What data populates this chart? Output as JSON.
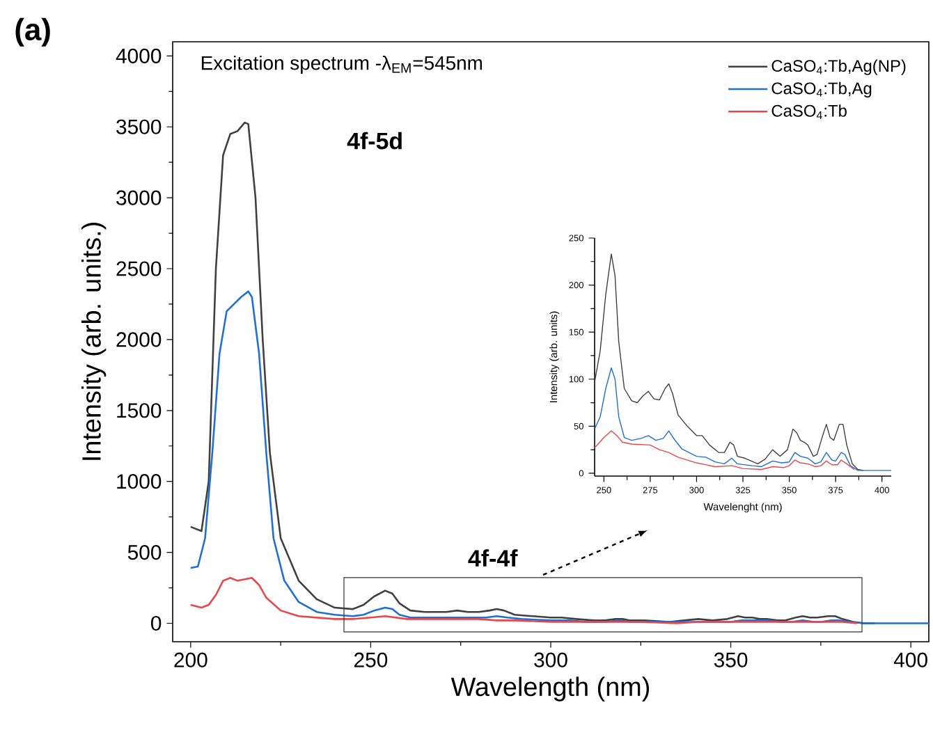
{
  "chart_data": [
    {
      "type": "line",
      "title": "Excitation spectrum -λ$_{EM}$=545nm",
      "xlabel": "Wavelength (nm)",
      "ylabel": "Intensity (arb. units.)",
      "annotations": [
        "(a)",
        "4f-5d",
        "4f-4f"
      ],
      "xlim": [
        195,
        405
      ],
      "ylim": [
        -130,
        4100
      ],
      "xticks": [
        200,
        250,
        300,
        350,
        400
      ],
      "yticks": [
        0,
        500,
        1000,
        1500,
        2000,
        2500,
        3000,
        3500,
        4000
      ],
      "legend": "top right",
      "line_style": "solid",
      "series": [
        {
          "name": "CaSO$_{4}$:Tb,Ag(NP)",
          "color": "#404040",
          "x": [
            200,
            203,
            205,
            207,
            209,
            211,
            213,
            215,
            216,
            218,
            220,
            222,
            225,
            230,
            235,
            240,
            245,
            248,
            251,
            254,
            256,
            258,
            261,
            265,
            268,
            271,
            274,
            277,
            280,
            283,
            285,
            287,
            290,
            295,
            300,
            303,
            307,
            312,
            315,
            318,
            320,
            322,
            326,
            333,
            337,
            341,
            345,
            349,
            352,
            354,
            356,
            358,
            360,
            363,
            365,
            368,
            370,
            372,
            374,
            377,
            379,
            381,
            384,
            387,
            390
          ],
          "values": [
            680,
            650,
            1000,
            2500,
            3300,
            3450,
            3470,
            3530,
            3520,
            3000,
            2000,
            1200,
            600,
            300,
            170,
            110,
            100,
            130,
            190,
            230,
            210,
            140,
            90,
            80,
            80,
            80,
            90,
            80,
            80,
            90,
            100,
            90,
            60,
            50,
            40,
            40,
            30,
            20,
            20,
            30,
            30,
            20,
            20,
            10,
            20,
            30,
            20,
            30,
            50,
            40,
            40,
            30,
            30,
            20,
            20,
            40,
            50,
            40,
            40,
            50,
            50,
            30,
            10,
            0,
            0
          ]
        },
        {
          "name": "CaSO$_{4}$:Tb,Ag",
          "color": "#1f6fd6",
          "x": [
            200,
            202,
            204,
            206,
            208,
            210,
            212,
            214,
            216,
            217,
            219,
            221,
            223,
            226,
            230,
            235,
            240,
            245,
            248,
            251,
            254,
            256,
            258,
            261,
            265,
            270,
            274,
            278,
            282,
            285,
            288,
            292,
            300,
            305,
            310,
            315,
            319,
            322,
            330,
            335,
            341,
            346,
            350,
            353,
            356,
            360,
            364,
            367,
            370,
            373,
            375,
            378,
            380,
            383,
            387,
            400,
            405
          ],
          "values": [
            390,
            400,
            600,
            1200,
            1900,
            2200,
            2250,
            2300,
            2340,
            2300,
            1900,
            1200,
            600,
            300,
            150,
            80,
            60,
            50,
            60,
            90,
            110,
            100,
            60,
            40,
            40,
            40,
            40,
            40,
            40,
            50,
            40,
            30,
            20,
            20,
            10,
            10,
            20,
            10,
            10,
            10,
            10,
            10,
            10,
            20,
            20,
            20,
            10,
            10,
            20,
            10,
            10,
            20,
            20,
            10,
            0,
            0,
            0
          ]
        },
        {
          "name": "CaSO$_{4}$:Tb",
          "color": "#e8474a",
          "x": [
            200,
            203,
            205,
            207,
            209,
            211,
            213,
            215,
            217,
            219,
            221,
            225,
            230,
            240,
            245,
            250,
            254,
            257,
            260,
            265,
            275,
            280,
            285,
            290,
            300,
            310,
            319,
            325,
            335,
            341,
            347,
            350,
            353,
            356,
            360,
            364,
            367,
            370,
            373,
            376,
            378,
            381,
            385
          ],
          "values": [
            130,
            110,
            130,
            200,
            300,
            320,
            300,
            310,
            320,
            270,
            180,
            90,
            50,
            30,
            30,
            40,
            50,
            40,
            30,
            30,
            30,
            30,
            20,
            20,
            10,
            10,
            10,
            10,
            0,
            10,
            10,
            10,
            10,
            10,
            10,
            10,
            10,
            10,
            10,
            10,
            10,
            10,
            0
          ]
        }
      ]
    },
    {
      "type": "line",
      "xlabel": "Wavelenght (nm)",
      "ylabel": "Intensity (arb. units)",
      "xlim": [
        245,
        405
      ],
      "ylim": [
        -3,
        250
      ],
      "xticks": [
        250,
        275,
        300,
        325,
        350,
        375,
        400
      ],
      "yticks": [
        0,
        50,
        100,
        150,
        200,
        250
      ],
      "line_style": "solid",
      "series": [
        {
          "color": "#404040",
          "x": [
            245,
            248,
            251,
            254,
            256,
            258,
            261,
            265,
            268,
            271,
            274,
            277,
            280,
            283,
            285,
            287,
            290,
            295,
            300,
            303,
            307,
            312,
            315,
            318,
            320,
            322,
            326,
            333,
            337,
            341,
            345,
            349,
            352,
            354,
            356,
            358,
            360,
            363,
            365,
            368,
            370,
            372,
            374,
            377,
            379,
            381,
            384,
            387,
            390
          ],
          "values": [
            97,
            130,
            190,
            233,
            210,
            140,
            90,
            77,
            75,
            82,
            87,
            79,
            78,
            90,
            95,
            85,
            62,
            50,
            40,
            40,
            30,
            22,
            22,
            33,
            30,
            18,
            16,
            10,
            15,
            25,
            18,
            25,
            47,
            43,
            35,
            33,
            30,
            18,
            20,
            40,
            52,
            38,
            35,
            52,
            52,
            30,
            10,
            4,
            3
          ]
        },
        {
          "color": "#1f6fd6",
          "x": [
            245,
            248,
            251,
            254,
            256,
            258,
            261,
            265,
            270,
            274,
            278,
            282,
            285,
            288,
            292,
            300,
            305,
            310,
            315,
            319,
            322,
            330,
            335,
            341,
            346,
            350,
            353,
            356,
            360,
            364,
            367,
            370,
            373,
            375,
            378,
            380,
            383,
            387,
            400,
            405
          ],
          "values": [
            47,
            60,
            90,
            112,
            100,
            60,
            38,
            35,
            37,
            40,
            35,
            37,
            45,
            36,
            26,
            18,
            17,
            12,
            10,
            16,
            10,
            8,
            7,
            13,
            11,
            12,
            22,
            18,
            16,
            10,
            12,
            22,
            14,
            13,
            22,
            20,
            8,
            3,
            3,
            3
          ]
        },
        {
          "color": "#e8474a",
          "x": [
            245,
            250,
            254,
            257,
            260,
            265,
            275,
            280,
            285,
            290,
            300,
            310,
            319,
            325,
            335,
            341,
            347,
            350,
            353,
            356,
            360,
            364,
            367,
            370,
            373,
            376,
            378,
            381,
            385
          ],
          "values": [
            27,
            38,
            45,
            40,
            33,
            31,
            30,
            25,
            22,
            17,
            11,
            7,
            8,
            5,
            4,
            7,
            6,
            8,
            14,
            11,
            10,
            7,
            8,
            13,
            9,
            9,
            14,
            10,
            4
          ]
        }
      ]
    }
  ]
}
